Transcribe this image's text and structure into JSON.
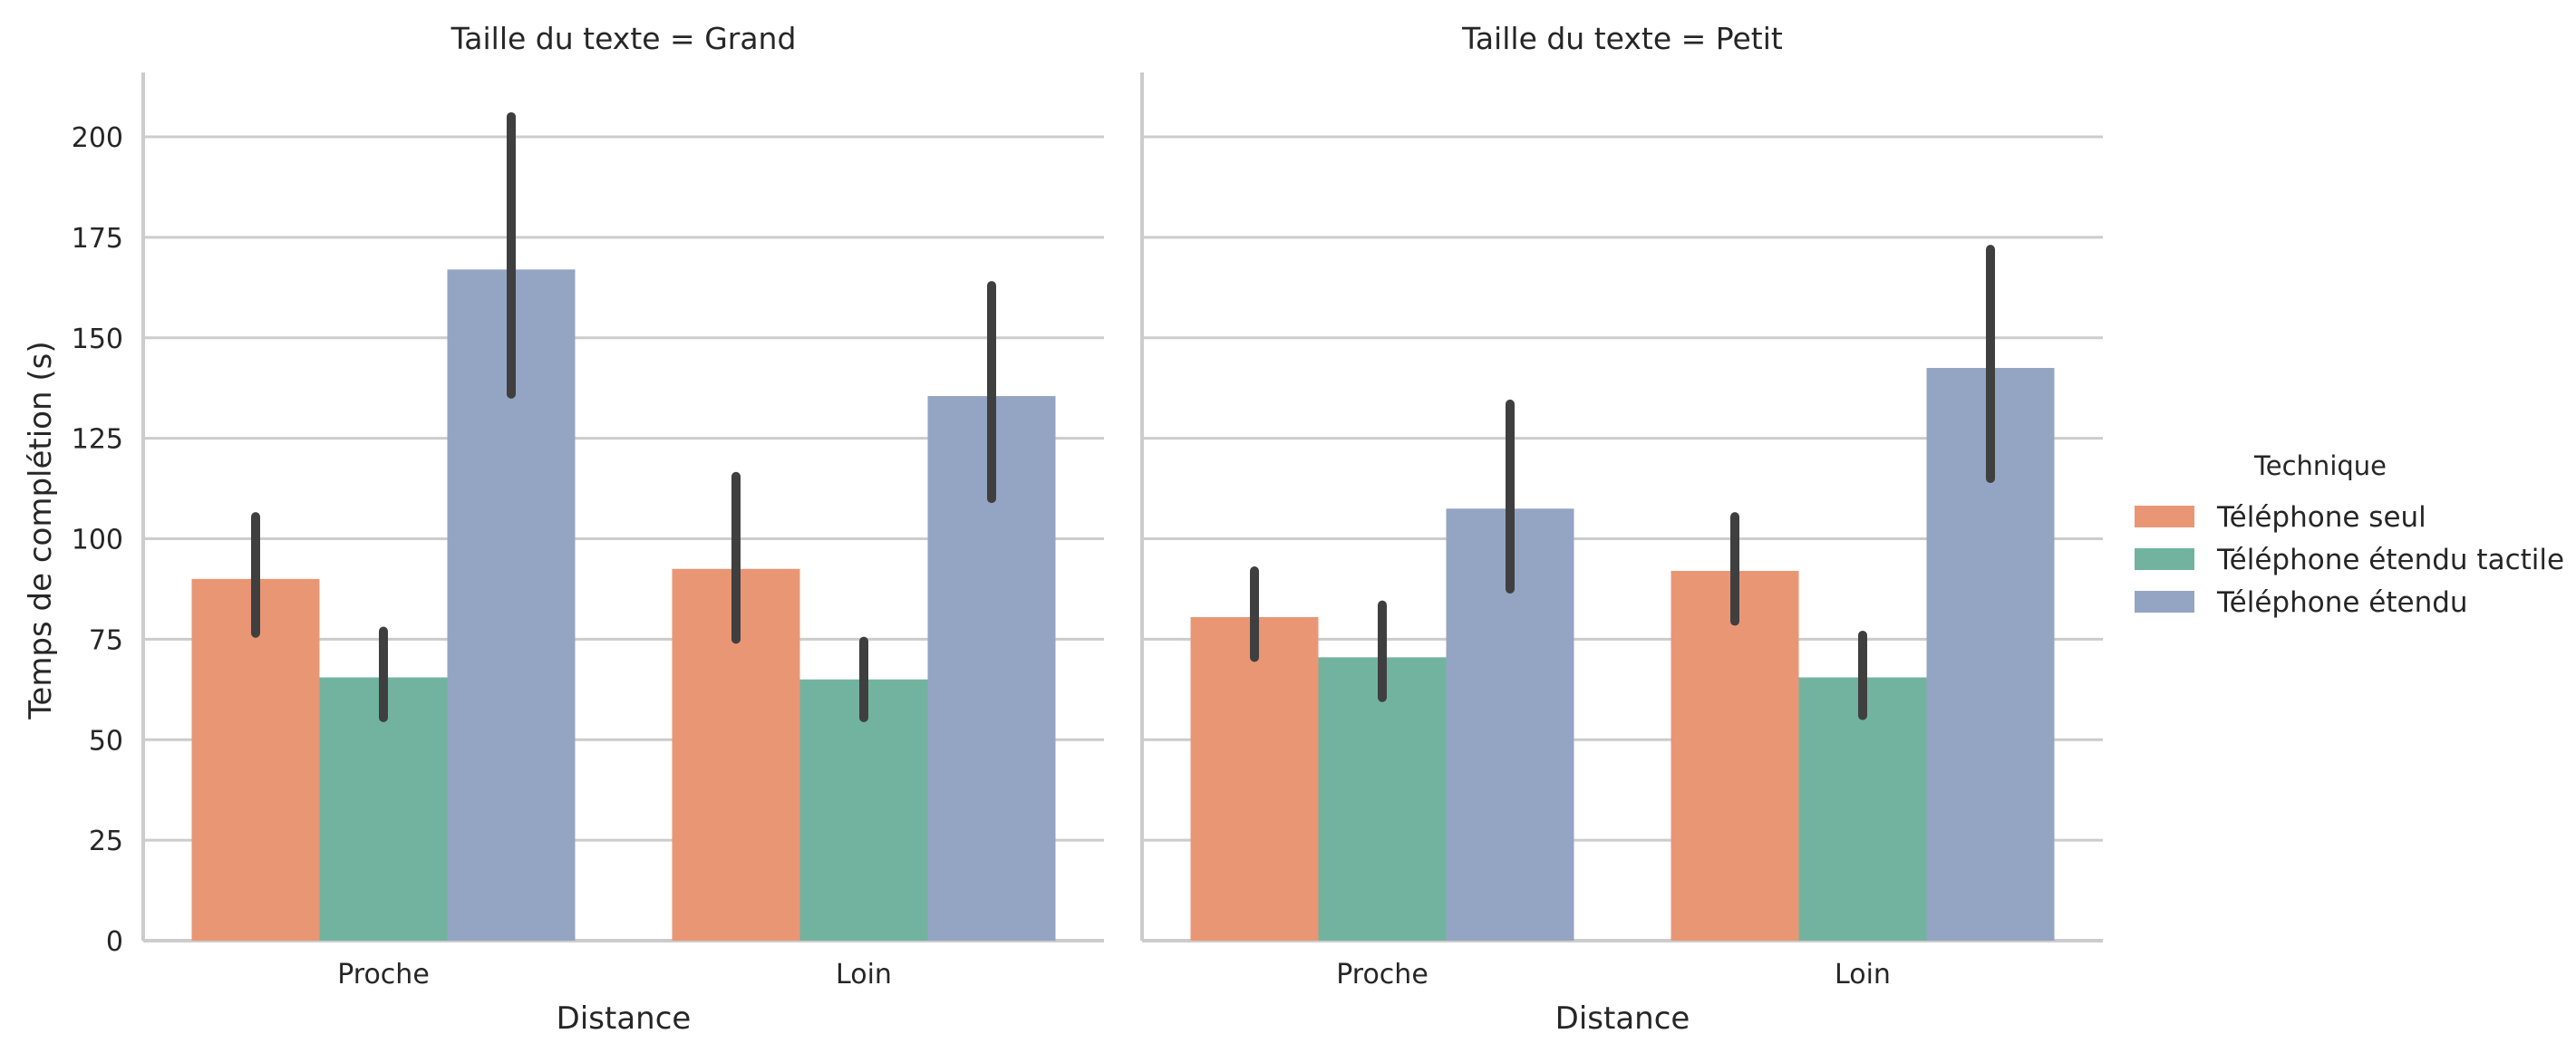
{
  "chart_data": {
    "type": "bar",
    "ylabel": "Temps de complétion (s)",
    "xlabel": "Distance",
    "ylim": [
      0,
      215
    ],
    "yticks": [
      0,
      25,
      50,
      75,
      100,
      125,
      150,
      175,
      200
    ],
    "grid": true,
    "categories": [
      "Proche",
      "Loin"
    ],
    "legend": {
      "title": "Technique",
      "placement": "right",
      "entries": [
        "Téléphone seul",
        "Téléphone étendu tactile",
        "Téléphone étendu"
      ]
    },
    "colors": {
      "Téléphone seul": "#e99675",
      "Téléphone étendu tactile": "#72b3a0",
      "Téléphone étendu": "#94a4c3"
    },
    "facets": [
      {
        "title": "Taille du texte = Grand",
        "series": [
          {
            "name": "Téléphone seul",
            "values": [
              90,
              92.5
            ],
            "ci_low": [
              76.5,
              75
            ],
            "ci_high": [
              105.5,
              115.5
            ]
          },
          {
            "name": "Téléphone étendu tactile",
            "values": [
              65.5,
              65
            ],
            "ci_low": [
              55.5,
              55.5
            ],
            "ci_high": [
              77,
              74.5
            ]
          },
          {
            "name": "Téléphone étendu",
            "values": [
              167,
              135.5
            ],
            "ci_low": [
              136,
              110
            ],
            "ci_high": [
              205,
              163
            ]
          }
        ]
      },
      {
        "title": "Taille du texte = Petit",
        "series": [
          {
            "name": "Téléphone seul",
            "values": [
              80.5,
              92
            ],
            "ci_low": [
              70.5,
              79.5
            ],
            "ci_high": [
              92,
              105.5
            ]
          },
          {
            "name": "Téléphone étendu tactile",
            "values": [
              70.5,
              65.5
            ],
            "ci_low": [
              60.5,
              56
            ],
            "ci_high": [
              83.5,
              76
            ]
          },
          {
            "name": "Téléphone étendu",
            "values": [
              107.5,
              142.5
            ],
            "ci_low": [
              87.5,
              115
            ],
            "ci_high": [
              133.5,
              172
            ]
          }
        ]
      }
    ]
  }
}
